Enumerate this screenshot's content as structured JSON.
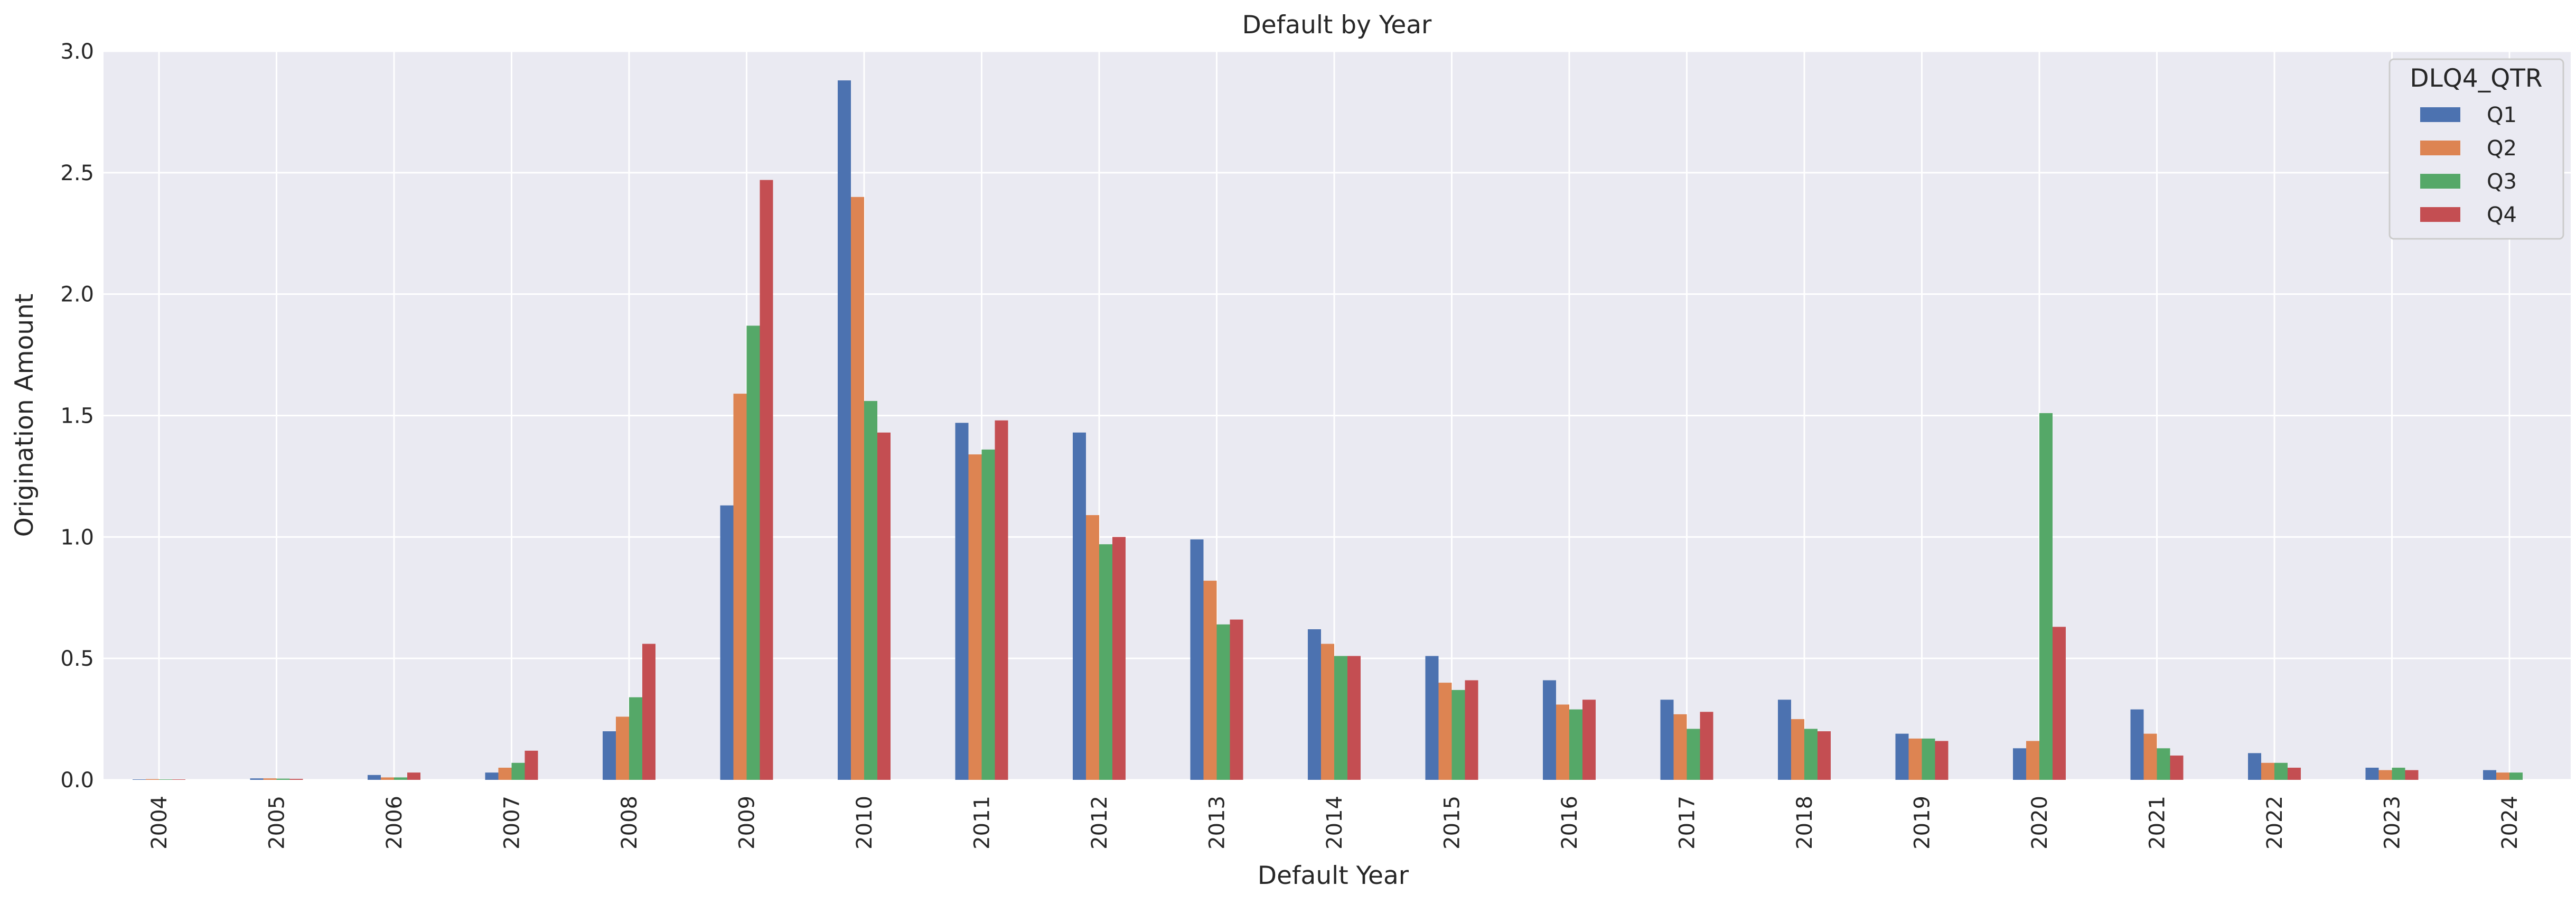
{
  "chart_data": {
    "type": "bar",
    "title": "Default by Year",
    "xlabel": "Default Year",
    "ylabel": "Origination Amount",
    "ylim": [
      0,
      3.0
    ],
    "yticks": [
      "0.0",
      "0.5",
      "1.0",
      "1.5",
      "2.0",
      "2.5",
      "3.0"
    ],
    "grid": true,
    "legend_position": "top-right",
    "legend_title": "DLQ4_QTR",
    "categories": [
      "2004",
      "2005",
      "2006",
      "2007",
      "2008",
      "2009",
      "2010",
      "2011",
      "2012",
      "2013",
      "2014",
      "2015",
      "2016",
      "2017",
      "2018",
      "2019",
      "2020",
      "2021",
      "2022",
      "2023",
      "2024"
    ],
    "series": [
      {
        "name": "Q1",
        "color": "#4c72b0",
        "values": [
          0.002,
          0.006,
          0.02,
          0.03,
          0.2,
          1.13,
          2.88,
          1.47,
          1.43,
          0.99,
          0.62,
          0.51,
          0.41,
          0.33,
          0.33,
          0.19,
          0.13,
          0.29,
          0.11,
          0.05,
          0.04
        ]
      },
      {
        "name": "Q2",
        "color": "#dd8452",
        "values": [
          0.003,
          0.006,
          0.01,
          0.05,
          0.26,
          1.59,
          2.4,
          1.34,
          1.09,
          0.82,
          0.56,
          0.4,
          0.31,
          0.27,
          0.25,
          0.17,
          0.16,
          0.19,
          0.07,
          0.04,
          0.03
        ]
      },
      {
        "name": "Q3",
        "color": "#55a868",
        "values": [
          0.002,
          0.005,
          0.01,
          0.07,
          0.34,
          1.87,
          1.56,
          1.36,
          0.97,
          0.64,
          0.51,
          0.37,
          0.29,
          0.21,
          0.21,
          0.17,
          1.51,
          0.13,
          0.07,
          0.05,
          0.03
        ]
      },
      {
        "name": "Q4",
        "color": "#c44e52",
        "values": [
          0.002,
          0.004,
          0.03,
          0.12,
          0.56,
          2.47,
          1.43,
          1.48,
          1.0,
          0.66,
          0.51,
          0.41,
          0.33,
          0.28,
          0.2,
          0.16,
          0.63,
          0.1,
          0.05,
          0.04,
          0
        ]
      }
    ]
  }
}
